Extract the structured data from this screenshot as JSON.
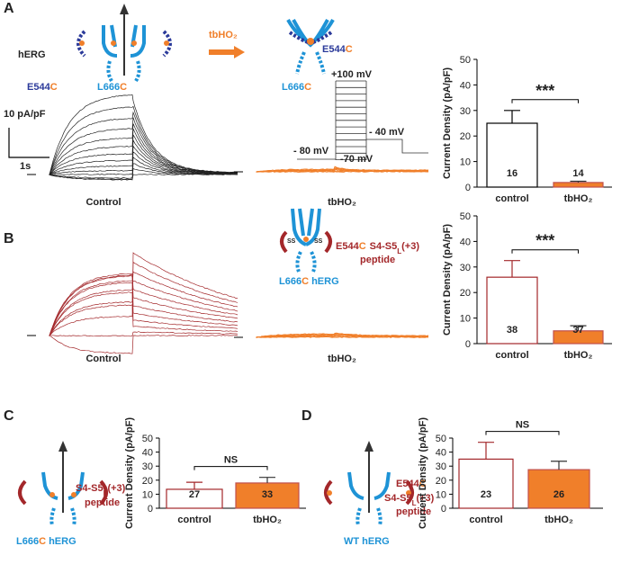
{
  "panels": [
    "A",
    "B",
    "C",
    "D"
  ],
  "diagram_a": {
    "channel": "hERG",
    "e544": "E544",
    "c": "C",
    "l666": "L666",
    "treatment": "tbHO₂"
  },
  "protocol": {
    "v1": "+100 mV",
    "v2": "- 40 mV",
    "v3": "- 80 mV",
    "v4": "-70 mV"
  },
  "scale": {
    "current": "10 pA/pF",
    "time": "1s"
  },
  "trace_labels": {
    "control": "Control",
    "treatment": "tbHO₂"
  },
  "diagram_b": {
    "ss": "SS",
    "peptide_prefix": "S4-S5",
    "sub": "L",
    "suffix": "(+3)",
    "peptide": "peptide",
    "herg": " hERG"
  },
  "diagram_d": {
    "wt": "WT hERG"
  },
  "chart_data": [
    {
      "type": "bar",
      "ylabel": "Current Density (pA/pF)",
      "categories": [
        "control",
        "tbHO₂"
      ],
      "values": [
        25,
        1.8
      ],
      "errors": [
        5,
        0.5
      ],
      "n_labels": [
        16,
        14
      ],
      "colors": [
        "#ffffff",
        "#f07f2a"
      ],
      "edge_colors": [
        "#000000",
        "#c0504d"
      ],
      "significance": "***",
      "ylim": [
        0,
        50
      ],
      "yticks": [
        0,
        10,
        20,
        30,
        40,
        50
      ]
    },
    {
      "type": "bar",
      "ylabel": "Current Density (pA/pF)",
      "categories": [
        "control",
        "tbHO₂"
      ],
      "values": [
        26,
        5
      ],
      "errors": [
        6.5,
        2
      ],
      "n_labels": [
        38,
        37
      ],
      "colors": [
        "#ffffff",
        "#f07f2a"
      ],
      "edge_colors": [
        "#a3272a",
        "#c0504d"
      ],
      "significance": "***",
      "ylim": [
        0,
        50
      ],
      "yticks": [
        0,
        10,
        20,
        30,
        40,
        50
      ]
    },
    {
      "type": "bar",
      "ylabel": "Current Density (pA/pF)",
      "categories": [
        "control",
        "tbHO₂"
      ],
      "values": [
        13.5,
        18
      ],
      "errors": [
        5,
        4
      ],
      "n_labels": [
        27,
        33
      ],
      "colors": [
        "#ffffff",
        "#f07f2a"
      ],
      "edge_colors": [
        "#a3272a",
        "#c0504d"
      ],
      "significance": "NS",
      "ylim": [
        0,
        50
      ],
      "yticks": [
        0,
        10,
        20,
        30,
        40,
        50
      ]
    },
    {
      "type": "bar",
      "ylabel": "Current Density (pA/pF)",
      "categories": [
        "control",
        "tbHO₂"
      ],
      "values": [
        35,
        27.5
      ],
      "errors": [
        12,
        6
      ],
      "n_labels": [
        23,
        26
      ],
      "colors": [
        "#ffffff",
        "#f07f2a"
      ],
      "edge_colors": [
        "#a3272a",
        "#c0504d"
      ],
      "significance": "NS",
      "ylim": [
        0,
        50
      ],
      "yticks": [
        0,
        10,
        20,
        30,
        40,
        50
      ]
    }
  ]
}
